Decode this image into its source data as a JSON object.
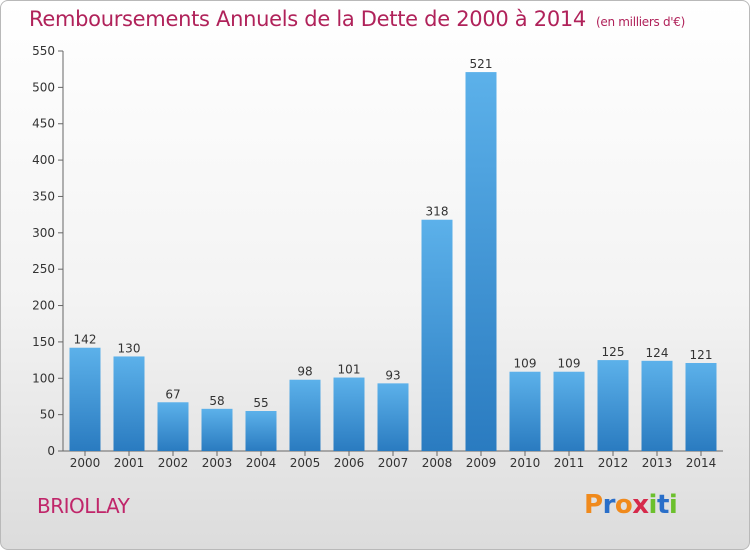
{
  "title": "Remboursements Annuels de la Dette de 2000 à 2014",
  "unit": "(en milliers d'€)",
  "commune": "BRIOLLAY",
  "logo": {
    "letters": [
      "P",
      "r",
      "o",
      "x",
      "i",
      "t",
      "i"
    ],
    "colors": [
      "#f08a1c",
      "#2a6fc9",
      "#f08a1c",
      "#d62a4b",
      "#6cc02d",
      "#2a6fc9",
      "#6cc02d"
    ]
  },
  "colors": {
    "accent": "#b0225a",
    "bar_top": "#5cb1ea",
    "bar_bottom": "#2a7bc0",
    "axis": "#666666"
  },
  "chart_data": {
    "type": "bar",
    "title": "Remboursements Annuels de la Dette de 2000 à 2014",
    "xlabel": "",
    "ylabel": "",
    "categories": [
      "2000",
      "2001",
      "2002",
      "2003",
      "2004",
      "2005",
      "2006",
      "2007",
      "2008",
      "2009",
      "2010",
      "2011",
      "2012",
      "2013",
      "2014"
    ],
    "values": [
      142,
      130,
      67,
      58,
      55,
      98,
      101,
      93,
      318,
      521,
      109,
      109,
      125,
      124,
      121
    ],
    "ylim": [
      0,
      550
    ],
    "yticks": [
      0,
      50,
      100,
      150,
      200,
      250,
      300,
      350,
      400,
      450,
      500,
      550
    ],
    "grid": false,
    "legend": "none"
  }
}
